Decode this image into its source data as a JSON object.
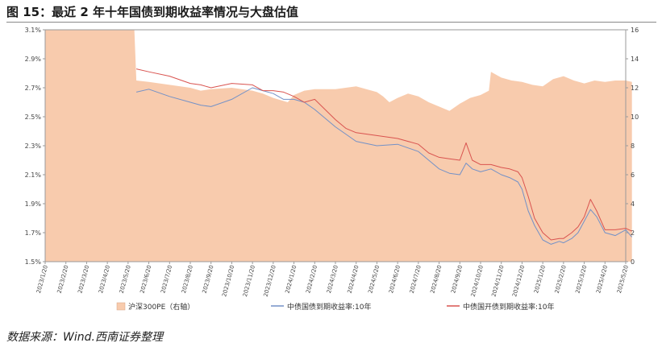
{
  "figure": {
    "title": "图 15：最近 2 年十年国债到期收益率情况与大盘估值",
    "source": "数据来源：Wind.西南证券整理"
  },
  "colors": {
    "pe_fill": "#F8CBAD",
    "gov_line": "#7391C7",
    "cdb_line": "#D9534F"
  },
  "chart_data": {
    "type": "line",
    "title": "",
    "y_left": {
      "range": [
        1.5,
        3.1
      ],
      "ticks": [
        "1.5%",
        "1.7%",
        "1.9%",
        "2.1%",
        "2.3%",
        "2.5%",
        "2.7%",
        "2.9%",
        "3.1%"
      ]
    },
    "y_right": {
      "range": [
        0,
        16
      ],
      "ticks": [
        "0",
        "2",
        "4",
        "6",
        "8",
        "10",
        "12",
        "14",
        "16"
      ]
    },
    "x_ticks": [
      "2023/1/20",
      "2023/2/20",
      "2023/3/20",
      "2023/4/20",
      "2023/5/20",
      "2023/6/20",
      "2023/7/20",
      "2023/8/20",
      "2023/9/20",
      "2023/10/20",
      "2023/11/20",
      "2023/12/20",
      "2024/1/20",
      "2024/2/20",
      "2024/3/20",
      "2024/4/20",
      "2024/5/20",
      "2024/6/20",
      "2024/7/20",
      "2024/8/20",
      "2024/9/20",
      "2024/10/20",
      "2024/11/20",
      "2024/12/20",
      "2025/1/20",
      "2025/2/20",
      "2025/3/20",
      "2025/4/20",
      "2025/5/20"
    ],
    "grid": false,
    "legend_position": "bottom",
    "series": [
      {
        "name": "沪深300PE（右轴）",
        "kind": "area",
        "axis": "right",
        "x": [
          0,
          4.3,
          4.4,
          5,
          6,
          7,
          7.5,
          8,
          9,
          10,
          10.5,
          11,
          11.7,
          12,
          12.5,
          13,
          14,
          15,
          16,
          16.3,
          16.6,
          17,
          17.5,
          18,
          18.5,
          19,
          19.5,
          20,
          20.5,
          21,
          21.4,
          21.5,
          22,
          22.5,
          23,
          23.5,
          24,
          24.5,
          25,
          25.5,
          26,
          26.5,
          27,
          27.5,
          28,
          28.3
        ],
        "values": [
          16,
          16,
          12.5,
          12.4,
          12.2,
          12.0,
          11.8,
          11.9,
          12.0,
          11.8,
          11.6,
          11.3,
          11.0,
          11.5,
          11.8,
          11.9,
          11.9,
          12.1,
          11.7,
          11.4,
          11.0,
          11.3,
          11.6,
          11.4,
          11.0,
          10.7,
          10.4,
          10.9,
          11.3,
          11.5,
          11.8,
          13.1,
          12.7,
          12.5,
          12.4,
          12.2,
          12.1,
          12.6,
          12.8,
          12.5,
          12.3,
          12.5,
          12.4,
          12.5,
          12.5,
          12.4
        ]
      },
      {
        "name": "中债国债到期收益率:10年",
        "kind": "line",
        "axis": "left",
        "x": [
          4.4,
          5,
          6,
          7,
          7.5,
          8,
          9,
          10,
          10.5,
          11,
          11.5,
          12,
          12.5,
          13,
          14,
          14.5,
          15,
          16,
          17,
          18,
          18.5,
          19,
          19.5,
          20,
          20.3,
          20.6,
          21,
          21.5,
          22,
          22.4,
          22.8,
          23,
          23.3,
          23.6,
          24,
          24.4,
          24.8,
          25,
          25.4,
          25.7,
          26,
          26.3,
          26.6,
          27,
          27.5,
          28,
          28.3
        ],
        "values": [
          2.67,
          2.69,
          2.64,
          2.6,
          2.58,
          2.57,
          2.62,
          2.7,
          2.68,
          2.66,
          2.62,
          2.62,
          2.6,
          2.55,
          2.43,
          2.38,
          2.33,
          2.3,
          2.31,
          2.26,
          2.2,
          2.14,
          2.11,
          2.1,
          2.18,
          2.14,
          2.12,
          2.14,
          2.1,
          2.08,
          2.05,
          2.0,
          1.85,
          1.75,
          1.65,
          1.62,
          1.64,
          1.63,
          1.66,
          1.7,
          1.78,
          1.86,
          1.81,
          1.7,
          1.68,
          1.72,
          1.67
        ]
      },
      {
        "name": "中债国开债到期收益率:10年",
        "kind": "line",
        "axis": "left",
        "x": [
          4.4,
          5,
          6,
          7,
          7.5,
          8,
          9,
          10,
          10.5,
          11,
          11.5,
          12,
          12.5,
          13,
          14,
          14.5,
          15,
          16,
          17,
          18,
          18.5,
          19,
          19.5,
          20,
          20.3,
          20.6,
          21,
          21.5,
          22,
          22.4,
          22.8,
          23,
          23.3,
          23.6,
          24,
          24.4,
          24.8,
          25,
          25.4,
          25.7,
          26,
          26.3,
          26.6,
          27,
          27.5,
          28,
          28.3
        ],
        "values": [
          2.83,
          2.81,
          2.78,
          2.73,
          2.72,
          2.7,
          2.73,
          2.72,
          2.68,
          2.68,
          2.67,
          2.64,
          2.6,
          2.62,
          2.48,
          2.42,
          2.39,
          2.37,
          2.35,
          2.31,
          2.25,
          2.22,
          2.21,
          2.2,
          2.32,
          2.2,
          2.17,
          2.17,
          2.15,
          2.14,
          2.12,
          2.08,
          1.95,
          1.8,
          1.7,
          1.65,
          1.66,
          1.66,
          1.7,
          1.74,
          1.81,
          1.93,
          1.85,
          1.72,
          1.72,
          1.73,
          1.71
        ]
      }
    ]
  }
}
